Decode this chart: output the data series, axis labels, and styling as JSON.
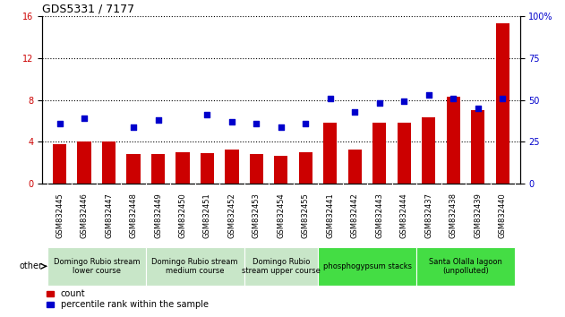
{
  "title": "GDS5331 / 7177",
  "categories": [
    "GSM832445",
    "GSM832446",
    "GSM832447",
    "GSM832448",
    "GSM832449",
    "GSM832450",
    "GSM832451",
    "GSM832452",
    "GSM832453",
    "GSM832454",
    "GSM832455",
    "GSM832441",
    "GSM832442",
    "GSM832443",
    "GSM832444",
    "GSM832437",
    "GSM832438",
    "GSM832439",
    "GSM832440"
  ],
  "bar_values": [
    3.8,
    4.0,
    4.0,
    2.8,
    2.8,
    3.0,
    2.9,
    3.3,
    2.8,
    2.7,
    3.0,
    5.8,
    3.3,
    5.8,
    5.8,
    6.3,
    8.3,
    7.0,
    15.3
  ],
  "scatter_values_pct": [
    36,
    39,
    null,
    34,
    38,
    null,
    41,
    37,
    36,
    34,
    36,
    51,
    43,
    48,
    49,
    53,
    51,
    45,
    51
  ],
  "bar_color": "#cc0000",
  "scatter_color": "#0000cc",
  "left_ylim": [
    0,
    16
  ],
  "right_ylim": [
    0,
    100
  ],
  "left_yticks": [
    0,
    4,
    8,
    12,
    16
  ],
  "right_yticks": [
    0,
    25,
    50,
    75,
    100
  ],
  "groups": [
    {
      "label": "Domingo Rubio stream\nlower course",
      "start": 0,
      "end": 4,
      "color": "#c8e6c8"
    },
    {
      "label": "Domingo Rubio stream\nmedium course",
      "start": 4,
      "end": 8,
      "color": "#c8e6c8"
    },
    {
      "label": "Domingo Rubio\nstream upper course",
      "start": 8,
      "end": 11,
      "color": "#c8e6c8"
    },
    {
      "label": "phosphogypsum stacks",
      "start": 11,
      "end": 15,
      "color": "#44dd44"
    },
    {
      "label": "Santa Olalla lagoon\n(unpolluted)",
      "start": 15,
      "end": 19,
      "color": "#44dd44"
    }
  ],
  "other_label": "other",
  "legend_count": "count",
  "legend_pct": "percentile rank within the sample",
  "title_fontsize": 9,
  "tick_fontsize": 6,
  "group_fontsize": 6,
  "label_fontsize": 7
}
